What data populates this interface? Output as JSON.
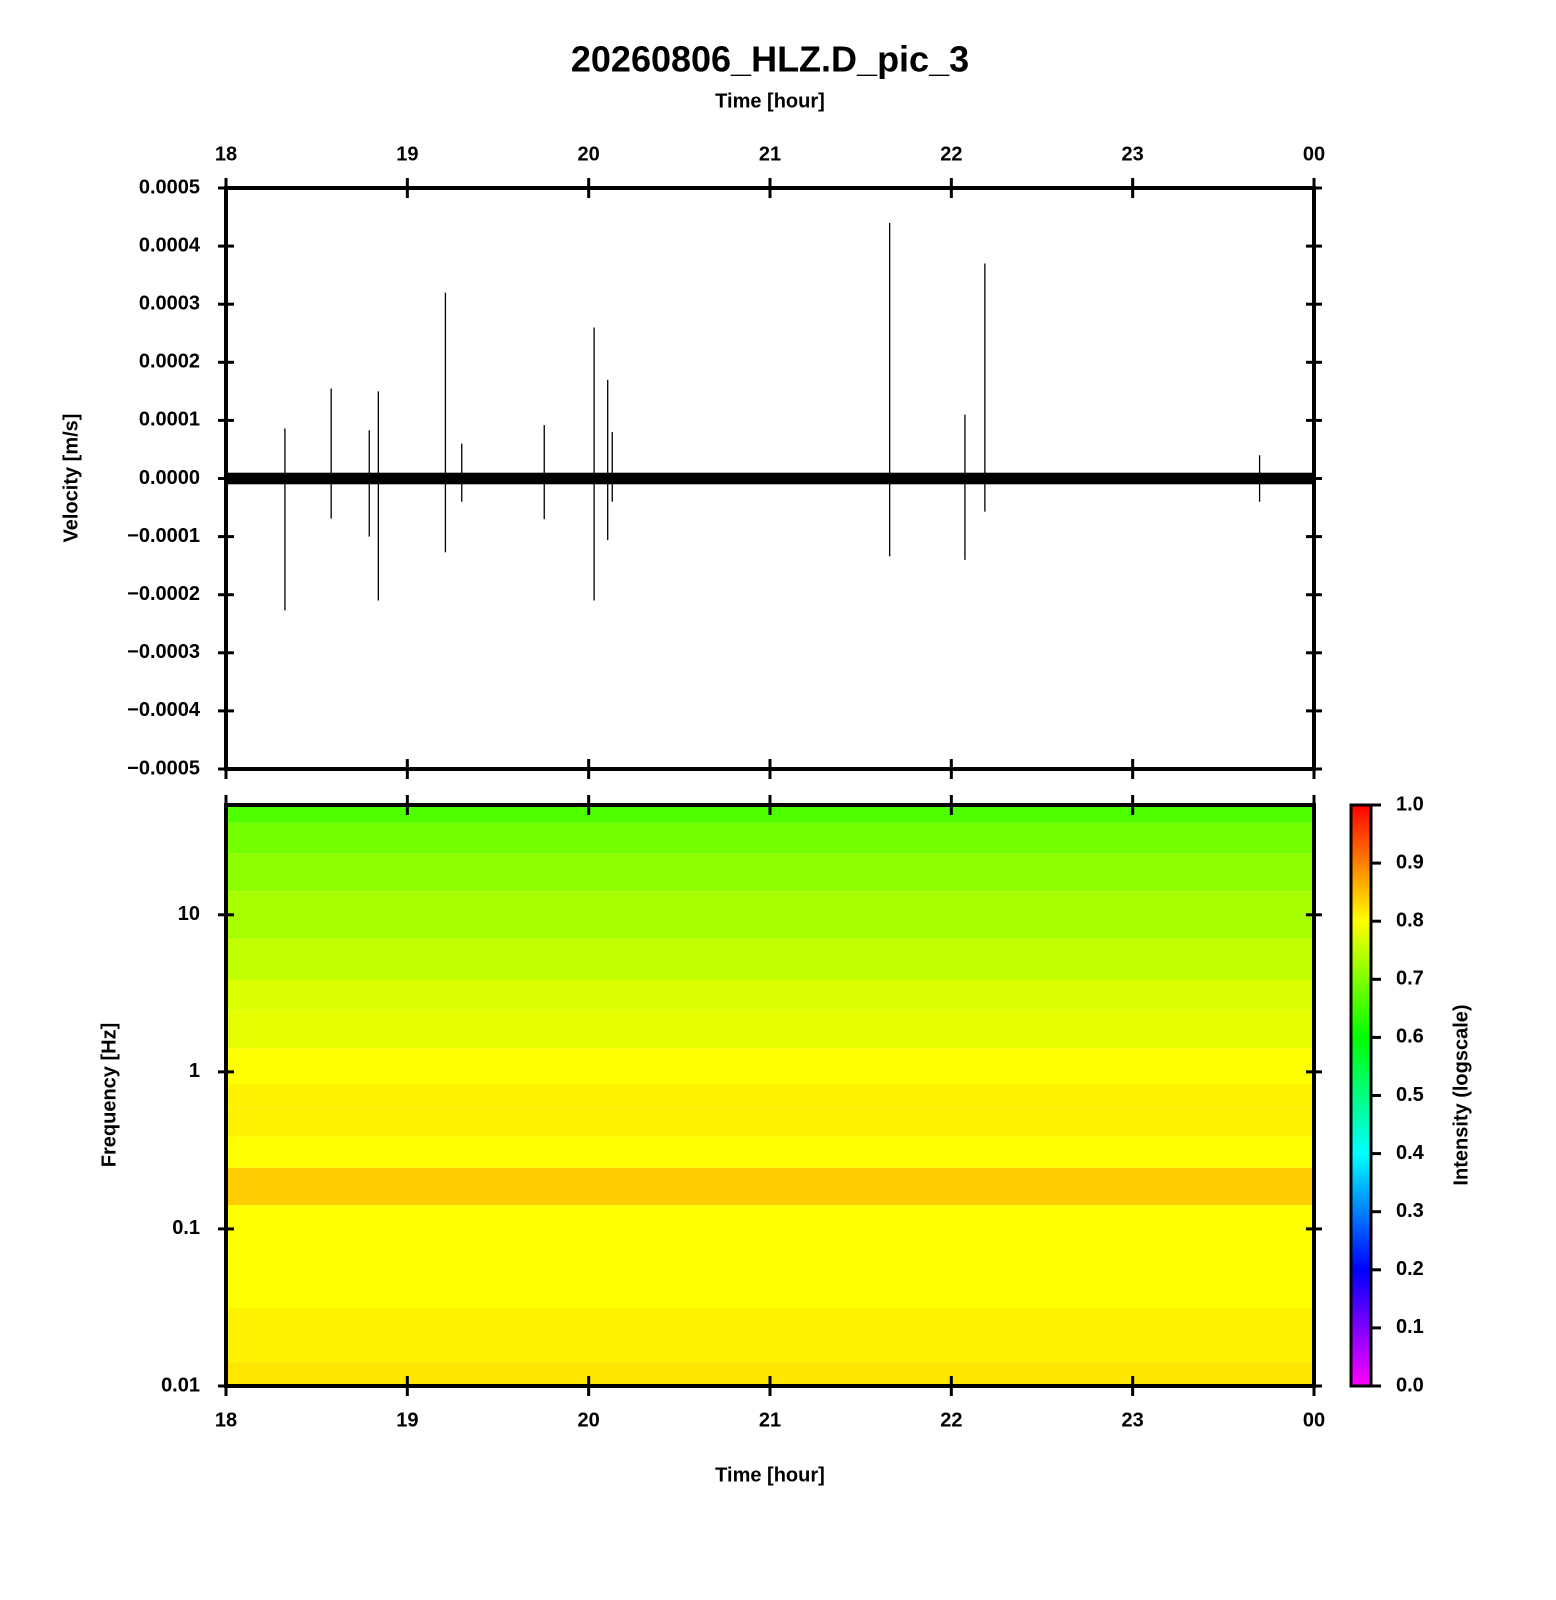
{
  "chart_data": [
    {
      "type": "waveform",
      "title": "20260806_HLZ.D_pic_3",
      "xlabel": "Time [hour]",
      "ylabel": "Velocity [m/s]",
      "xlim": [
        18,
        24
      ],
      "xticks": [
        18,
        19,
        20,
        21,
        22,
        23,
        {
          "value": 24,
          "label": "00"
        }
      ],
      "ylim": [
        -0.0005,
        0.0005
      ],
      "yticks": [
        {
          "value": -0.0005,
          "label": "−0.0005"
        },
        {
          "value": -0.0004,
          "label": "−0.0004"
        },
        {
          "value": -0.0003,
          "label": "−0.0003"
        },
        {
          "value": -0.0002,
          "label": "−0.0002"
        },
        {
          "value": -0.0001,
          "label": "−0.0001"
        },
        {
          "value": 0,
          "label": "0.0000"
        },
        0.0001,
        0.0002,
        0.0003,
        0.0004,
        0.0005
      ],
      "color": "#000000",
      "noise_amplitude": 1e-05,
      "x": [
        18.325,
        18.58,
        18.79,
        18.84,
        19.21,
        19.3,
        19.755,
        20.03,
        20.105,
        20.13,
        21.66,
        22.075,
        22.185,
        23.7
      ],
      "values": [
        8.6e-05,
        0.000155,
        8.3e-05,
        0.00015,
        0.00032,
        6e-05,
        9.2e-05,
        0.00026,
        0.00017,
        8e-05,
        0.00044,
        0.00011,
        0.00037,
        4e-05
      ],
      "min_values": [
        -0.000227,
        -6.9e-05,
        -0.0001,
        -0.00021,
        -0.000127,
        -4e-05,
        -7e-05,
        -0.00021,
        -0.000106,
        -4e-05,
        -0.000134,
        -0.00014,
        -5.7e-05,
        -4e-05
      ]
    },
    {
      "type": "spectrogram",
      "xlabel": "Time [hour]",
      "ylabel": "Frequency [Hz]",
      "xlim": [
        18,
        24
      ],
      "xticks": [
        18,
        19,
        20,
        21,
        22,
        23,
        {
          "value": 24,
          "label": "00"
        }
      ],
      "ylim": [
        0.01,
        50
      ],
      "yticks": [
        0.01,
        0.1,
        1,
        10
      ],
      "log_y": true,
      "frequencies": [
        50,
        30,
        20,
        10,
        5,
        3,
        2,
        1,
        0.7,
        0.5,
        0.3,
        0.2,
        0.1,
        0.05,
        0.02,
        0.01
      ],
      "values": [
        0.66,
        0.69,
        0.71,
        0.73,
        0.75,
        0.77,
        0.78,
        0.8,
        0.81,
        0.81,
        0.8,
        0.84,
        0.8,
        0.8,
        0.81,
        0.82
      ],
      "colormap": [
        "#ff00ff",
        "#0000ff",
        "#00ffff",
        "#00ff00",
        "#ffff00",
        "#ff0000"
      ],
      "clim": [
        0,
        1
      ],
      "cticks": [
        {
          "value": 0,
          "label": "0.0"
        },
        0.1,
        0.2,
        0.3,
        0.4,
        0.5,
        0.6,
        0.7,
        0.8,
        0.9,
        {
          "value": 1,
          "label": "1.0"
        }
      ],
      "colorbar_label": "Intensity (logscale)"
    }
  ]
}
